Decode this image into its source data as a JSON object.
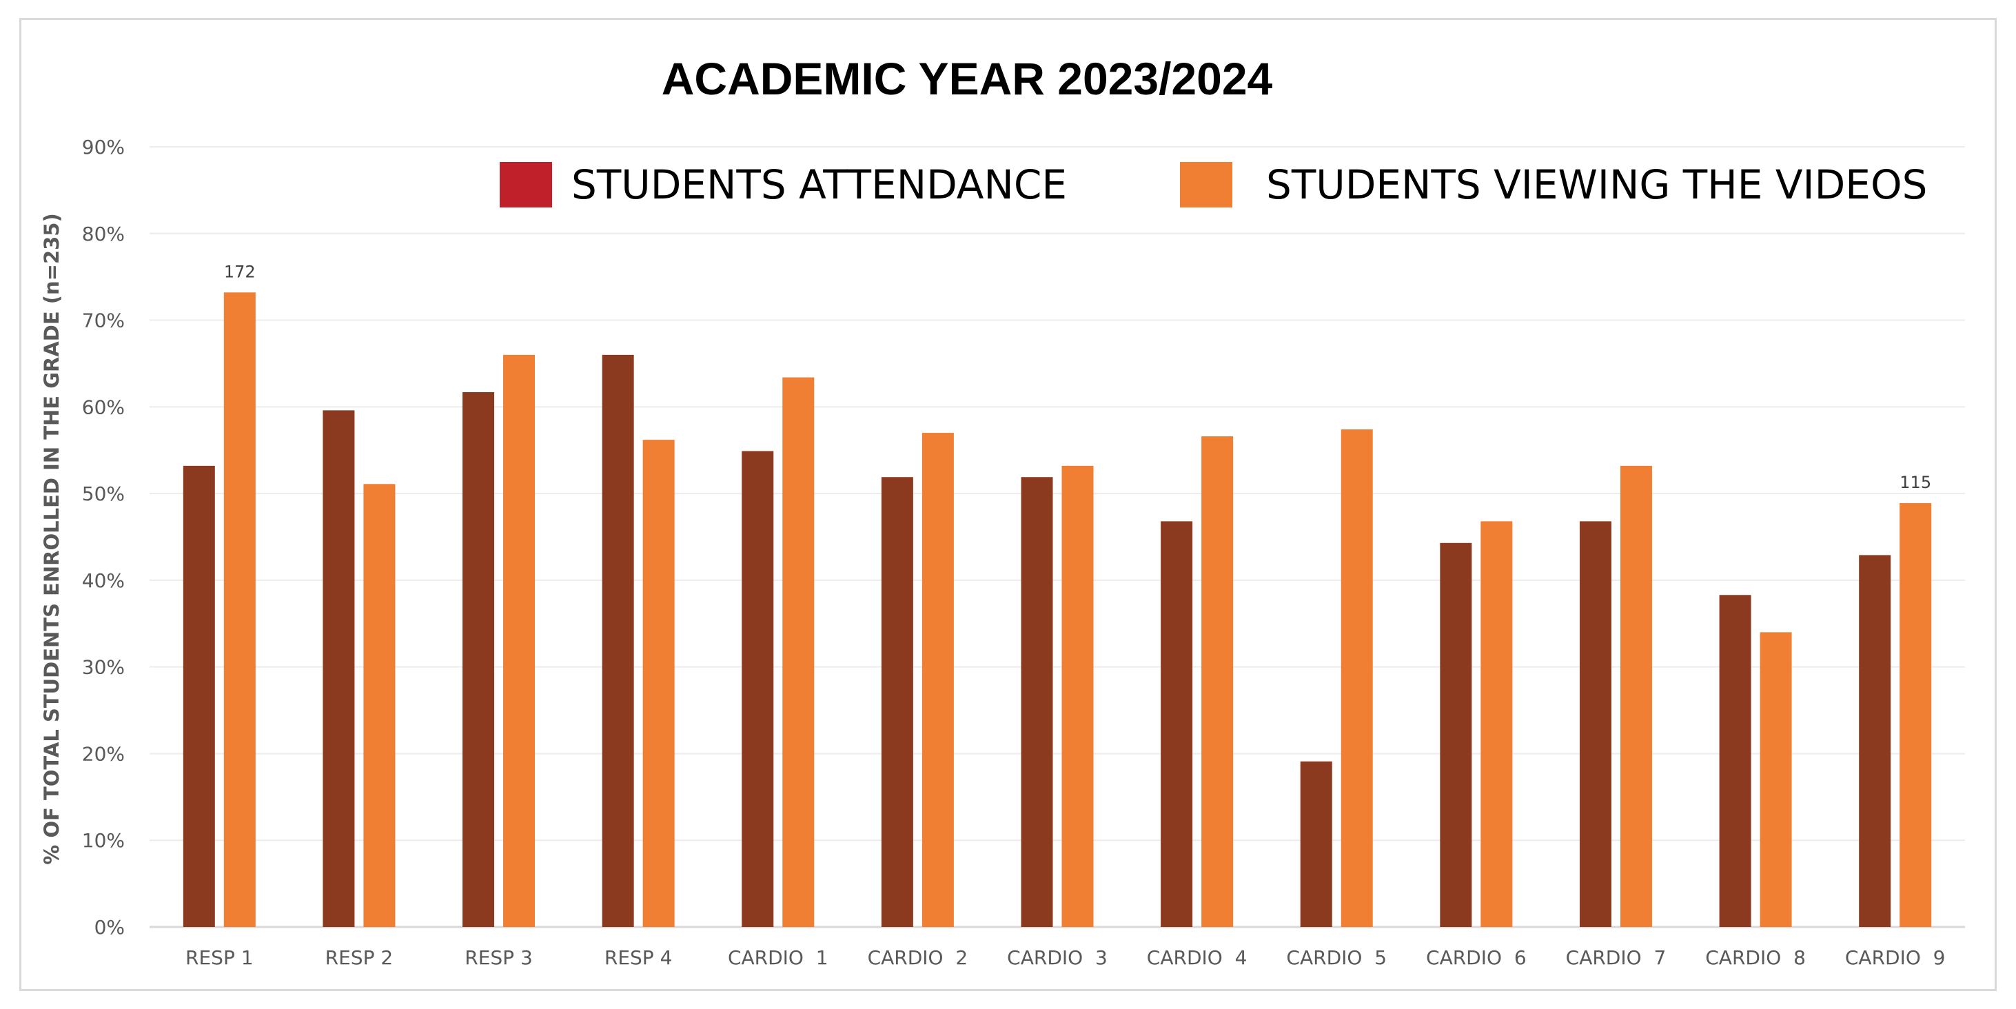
{
  "chart_data": {
    "type": "bar",
    "title": "ACADEMIC YEAR 2023/2024",
    "ylabel": "% OF TOTAL STUDENTS ENROLLED IN THE GRADE (n=235)",
    "xlabel": "",
    "ylim": [
      0,
      90
    ],
    "yticks": [
      0,
      10,
      20,
      30,
      40,
      50,
      60,
      70,
      80,
      90
    ],
    "ytick_suffix": "%",
    "grid": true,
    "legend_position": "top-right",
    "categories": [
      "RESP 1",
      "RESP 2",
      "RESP 3",
      "RESP 4",
      "CARDIO  1",
      "CARDIO  2",
      "CARDIO  3",
      "CARDIO  4",
      "CARDIO  5",
      "CARDIO  6",
      "CARDIO  7",
      "CARDIO  8",
      "CARDIO  9"
    ],
    "series": [
      {
        "name": "STUDENTS ATTENDANCE",
        "color": "#8b3a1f",
        "legend_color": "#c0202a",
        "values": [
          53.2,
          59.6,
          61.7,
          66.0,
          54.9,
          51.9,
          51.9,
          46.8,
          19.1,
          44.3,
          46.8,
          38.3,
          42.9
        ]
      },
      {
        "name": "STUDENTS VIEWING THE VIDEOS",
        "color": "#f07e33",
        "legend_color": "#f07e33",
        "values": [
          73.2,
          51.1,
          66.0,
          56.2,
          63.4,
          57.0,
          53.2,
          56.6,
          57.4,
          46.8,
          53.2,
          34.0,
          48.9
        ]
      }
    ],
    "annotations": [
      {
        "category_index": 0,
        "series_index": 1,
        "text": "172"
      },
      {
        "category_index": 12,
        "series_index": 1,
        "text": "115"
      }
    ]
  }
}
